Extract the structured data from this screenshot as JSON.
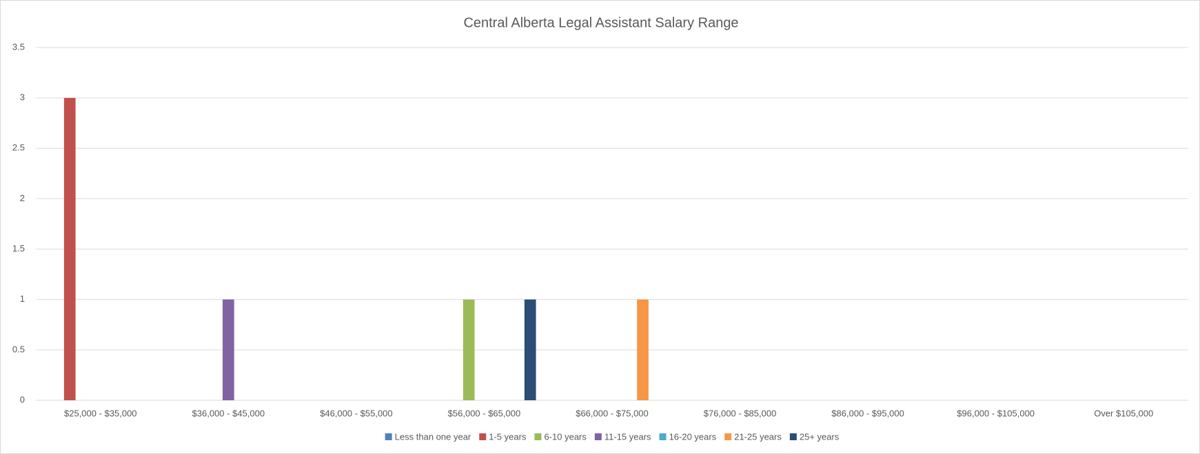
{
  "chart_data": {
    "type": "bar",
    "title": "Central Alberta Legal Assistant Salary Range",
    "categories": [
      "$25,000 - $35,000",
      "$36,000 - $45,000",
      "$46,000 - $55,000",
      "$56,000 - $65,000",
      "$66,000 - $75,000",
      "$76,000 - $85,000",
      "$86,000 - $95,000",
      "$96,000 - $105,000",
      "Over $105,000"
    ],
    "series": [
      {
        "name": "Less than one year",
        "color": "#4f81bd",
        "values": [
          0,
          0,
          0,
          0,
          0,
          0,
          0,
          0,
          0
        ]
      },
      {
        "name": "1-5 years",
        "color": "#c0504d",
        "values": [
          3,
          0,
          0,
          0,
          0,
          0,
          0,
          0,
          0
        ]
      },
      {
        "name": "6-10 years",
        "color": "#9bbb59",
        "values": [
          0,
          0,
          0,
          1,
          0,
          0,
          0,
          0,
          0
        ]
      },
      {
        "name": "11-15 years",
        "color": "#8064a2",
        "values": [
          0,
          1,
          0,
          0,
          0,
          0,
          0,
          0,
          0
        ]
      },
      {
        "name": "16-20 years",
        "color": "#4bacc6",
        "values": [
          0,
          0,
          0,
          0,
          0,
          0,
          0,
          0,
          0
        ]
      },
      {
        "name": "21-25 years",
        "color": "#f79646",
        "values": [
          0,
          0,
          0,
          0,
          1,
          0,
          0,
          0,
          0
        ]
      },
      {
        "name": "25+ years",
        "color": "#2c4d75",
        "values": [
          0,
          0,
          0,
          1,
          0,
          0,
          0,
          0,
          0
        ]
      }
    ],
    "ylim": [
      0,
      3.5
    ],
    "yticks": [
      0,
      0.5,
      1,
      1.5,
      2,
      2.5,
      3,
      3.5
    ],
    "grid": true,
    "legend": "bottom"
  }
}
